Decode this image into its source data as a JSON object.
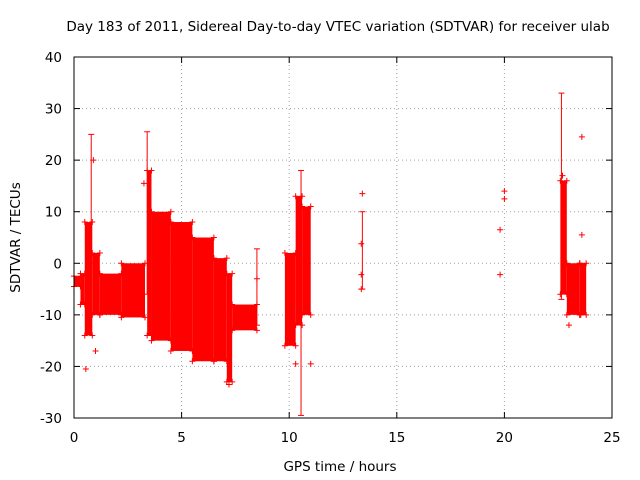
{
  "chart_data": {
    "type": "scatter",
    "title": "Day 183 of 2011, Sidereal Day-to-day VTEC variation (SDTVAR) for receiver ulab",
    "xlabel": "GPS time / hours",
    "ylabel": "SDTVAR / TECUs",
    "xlim": [
      0,
      25
    ],
    "ylim": [
      -30,
      40
    ],
    "xticks": [
      0,
      5,
      10,
      15,
      20,
      25
    ],
    "yticks": [
      -30,
      -20,
      -10,
      0,
      10,
      20,
      30,
      40
    ],
    "xtick_labels": [
      "0",
      "5",
      "10",
      "15",
      "20",
      "25"
    ],
    "ytick_labels": [
      "-30",
      "-20",
      "-10",
      "0",
      "10",
      "20",
      "30",
      "40"
    ],
    "grid": true,
    "series_color": "#ff0000",
    "marker": "+",
    "series": [
      {
        "name": "SDTVAR",
        "dense_bands": [
          {
            "x": [
              0.0,
              0.3
            ],
            "low": -4.5,
            "high": -2.5
          },
          {
            "x": [
              0.3,
              0.5
            ],
            "low": -8,
            "high": -2
          },
          {
            "x": [
              0.5,
              0.85
            ],
            "low": -14,
            "high": 8
          },
          {
            "x": [
              0.85,
              1.2
            ],
            "low": -10,
            "high": 2
          },
          {
            "x": [
              1.2,
              2.2
            ],
            "low": -10,
            "high": -2
          },
          {
            "x": [
              2.2,
              3.3
            ],
            "low": -10.5,
            "high": 0
          },
          {
            "x": [
              3.4,
              3.6
            ],
            "low": -14,
            "high": 18
          },
          {
            "x": [
              3.6,
              4.5
            ],
            "low": -15,
            "high": 10
          },
          {
            "x": [
              4.5,
              5.5
            ],
            "low": -17,
            "high": 8
          },
          {
            "x": [
              5.5,
              6.5
            ],
            "low": -19,
            "high": 5
          },
          {
            "x": [
              6.5,
              7.1
            ],
            "low": -19,
            "high": 1
          },
          {
            "x": [
              7.1,
              7.35
            ],
            "low": -23,
            "high": -2
          },
          {
            "x": [
              7.35,
              8.5
            ],
            "low": -13,
            "high": -8
          },
          {
            "x": [
              9.8,
              10.3
            ],
            "low": -16,
            "high": 2
          },
          {
            "x": [
              10.3,
              10.6
            ],
            "low": -12,
            "high": 13
          },
          {
            "x": [
              10.6,
              11.0
            ],
            "low": -10,
            "high": 11
          },
          {
            "x": [
              22.6,
              22.9
            ],
            "low": -6,
            "high": 16
          },
          {
            "x": [
              22.9,
              23.5
            ],
            "low": -10,
            "high": 0
          },
          {
            "x": [
              23.5,
              23.8
            ],
            "low": -10,
            "high": 0
          }
        ],
        "error_bars": [
          {
            "x": 0.8,
            "low": 0,
            "high": 25
          },
          {
            "x": 3.4,
            "low": -6,
            "high": 25.5
          },
          {
            "x": 8.5,
            "low": -12,
            "high": 2.8
          },
          {
            "x": 10.55,
            "low": -29.5,
            "high": 18
          },
          {
            "x": 13.4,
            "low": -5,
            "high": 10
          },
          {
            "x": 22.65,
            "low": -7,
            "high": 33
          }
        ],
        "points": [
          {
            "x": 0.55,
            "y": -20.5
          },
          {
            "x": 1.0,
            "y": -17
          },
          {
            "x": 0.9,
            "y": 20
          },
          {
            "x": 3.25,
            "y": 15.5
          },
          {
            "x": 7.2,
            "y": -23.5
          },
          {
            "x": 8.5,
            "y": -3
          },
          {
            "x": 10.3,
            "y": -19.5
          },
          {
            "x": 11.0,
            "y": -19.5
          },
          {
            "x": 13.4,
            "y": 13.5
          },
          {
            "x": 13.35,
            "y": 3.8
          },
          {
            "x": 13.35,
            "y": -2.2
          },
          {
            "x": 13.35,
            "y": -5
          },
          {
            "x": 19.8,
            "y": 6.5
          },
          {
            "x": 19.8,
            "y": -2.2
          },
          {
            "x": 20.0,
            "y": 14
          },
          {
            "x": 20.0,
            "y": 12.5
          },
          {
            "x": 22.7,
            "y": 17
          },
          {
            "x": 23.6,
            "y": 24.5
          },
          {
            "x": 23.6,
            "y": 5.5
          },
          {
            "x": 23.0,
            "y": -12
          },
          {
            "x": 23.55,
            "y": -10
          }
        ]
      }
    ]
  }
}
